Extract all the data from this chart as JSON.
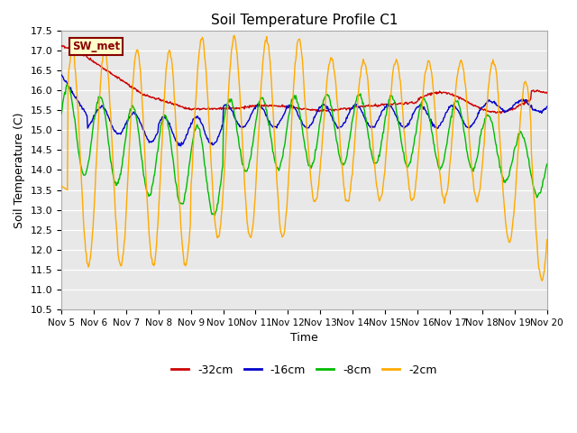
{
  "title": "Soil Temperature Profile C1",
  "xlabel": "Time",
  "ylabel": "Soil Temperature (C)",
  "ylim": [
    10.5,
    17.5
  ],
  "yticks": [
    10.5,
    11.0,
    11.5,
    12.0,
    12.5,
    13.0,
    13.5,
    14.0,
    14.5,
    15.0,
    15.5,
    16.0,
    16.5,
    17.0,
    17.5
  ],
  "legend_labels": [
    "-32cm",
    "-16cm",
    "-8cm",
    "-2cm"
  ],
  "line_colors": [
    "#cc0000",
    "#0000cc",
    "#00bb00",
    "#ffaa00"
  ],
  "annotation_text": "SW_met",
  "annotation_color": "#880000",
  "annotation_bg": "#ffffcc",
  "plot_bg": "#e8e8e8",
  "x_start": 5.0,
  "x_end": 20.0,
  "xtick_positions": [
    5,
    6,
    7,
    8,
    9,
    10,
    11,
    12,
    13,
    14,
    15,
    16,
    17,
    18,
    19,
    20
  ],
  "xtick_labels": [
    "Nov 5",
    "Nov 6",
    "Nov 7",
    "Nov 8",
    "Nov 9",
    "Nov 10",
    "Nov 11",
    "Nov 12",
    "Nov 13",
    "Nov 14",
    "Nov 15",
    "Nov 16",
    "Nov 17",
    "Nov 18",
    "Nov 19",
    "Nov 20"
  ]
}
